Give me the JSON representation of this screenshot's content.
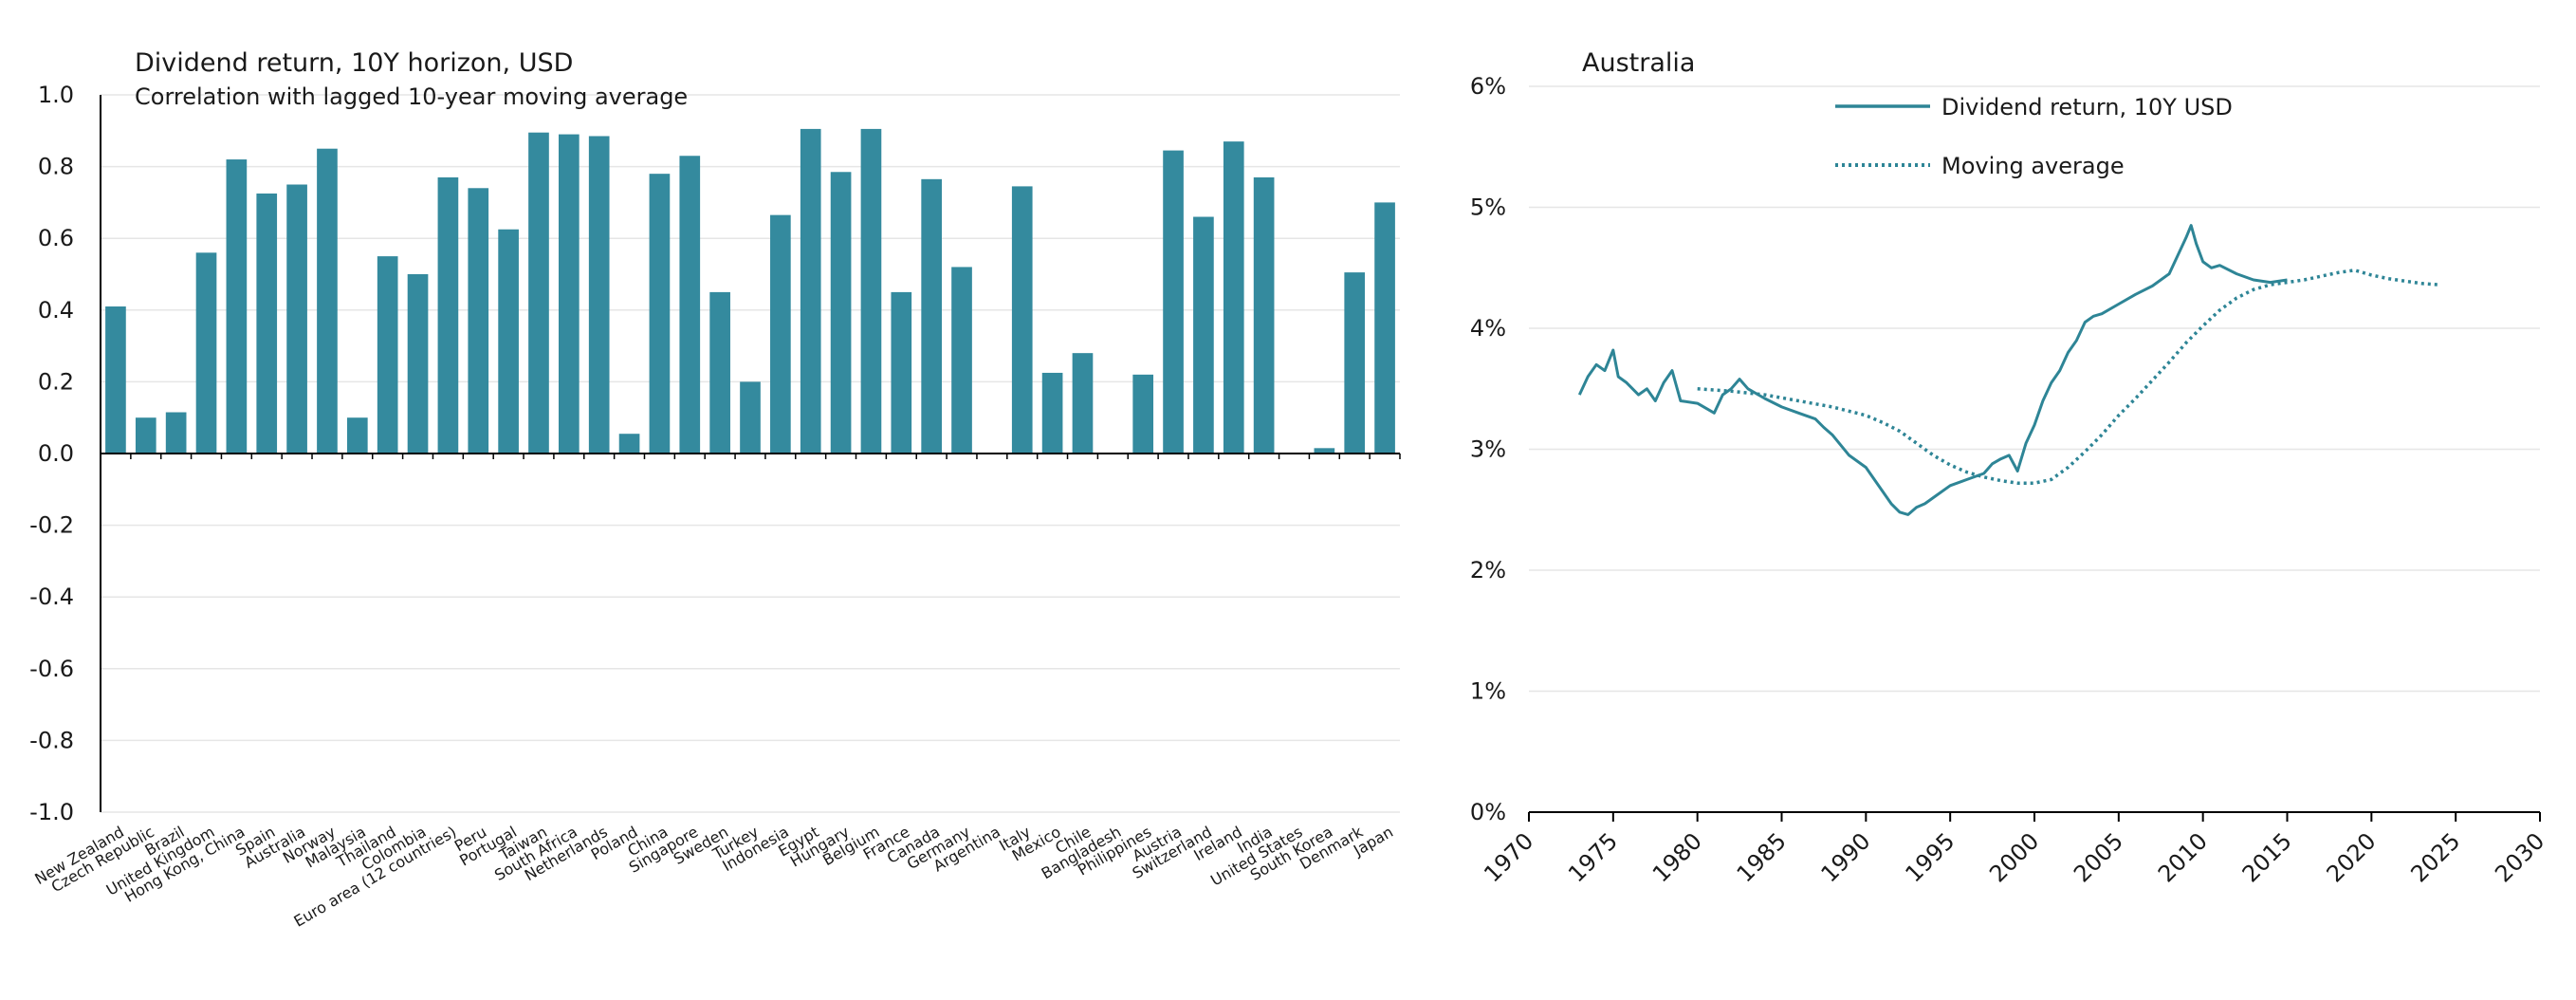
{
  "colors": {
    "bar": "#348a9e",
    "line": "#2e8596",
    "grid": "#e6e6e6",
    "axis": "#000000"
  },
  "chart_data": [
    {
      "type": "bar",
      "title": "Dividend return, 10Y horizon, USD",
      "subtitle": "Correlation with lagged 10-year moving average",
      "ylim": [
        -1.0,
        1.0
      ],
      "yticks": [
        "1.0",
        "0.8",
        "0.6",
        "0.4",
        "0.2",
        "0.0",
        "-0.2",
        "-0.4",
        "-0.6",
        "-0.8",
        "-1.0"
      ],
      "categories": [
        "New Zealand",
        "Czech Republic",
        "Brazil",
        "United Kingdom",
        "Hong Kong, China",
        "Spain",
        "Australia",
        "Norway",
        "Malaysia",
        "Thailand",
        "Colombia",
        "Euro area (12 countries)",
        "Peru",
        "Portugal",
        "Taiwan",
        "South Africa",
        "Netherlands",
        "Poland",
        "China",
        "Singapore",
        "Sweden",
        "Turkey",
        "Indonesia",
        "Egypt",
        "Hungary",
        "Belgium",
        "France",
        "Canada",
        "Germany",
        "Argentina",
        "Italy",
        "Mexico",
        "Chile",
        "Bangladesh",
        "Philippines",
        "Austria",
        "Switzerland",
        "Ireland",
        "India",
        "United States",
        "South Korea",
        "Denmark",
        "Japan"
      ],
      "values": [
        0.41,
        0.1,
        0.115,
        0.56,
        0.82,
        0.725,
        0.75,
        0.85,
        0.1,
        0.55,
        0.5,
        0.77,
        0.74,
        0.625,
        0.895,
        0.89,
        0.885,
        0.055,
        0.78,
        0.83,
        0.45,
        0.2,
        0.665,
        0.905,
        0.785,
        0.905,
        0.45,
        0.765,
        0.52,
        0.0,
        0.745,
        0.225,
        0.28,
        0.0,
        0.22,
        0.845,
        0.66,
        0.87,
        0.77,
        0.0,
        0.015,
        0.505,
        0.7
      ]
    },
    {
      "type": "line",
      "title": "Australia",
      "xlim": [
        1970,
        2030
      ],
      "ylim": [
        0,
        6
      ],
      "xticks": [
        "1970",
        "1975",
        "1980",
        "1985",
        "1990",
        "1995",
        "2000",
        "2005",
        "2010",
        "2015",
        "2020",
        "2025",
        "2030"
      ],
      "yticks": [
        "6%",
        "5%",
        "4%",
        "3%",
        "2%",
        "1%",
        "0%"
      ],
      "legend": [
        "Dividend return, 10Y USD",
        "Moving average"
      ],
      "series": [
        {
          "name": "Dividend return, 10Y USD",
          "x": [
            1973.0,
            1973.5,
            1974.0,
            1974.5,
            1975.0,
            1975.3,
            1975.8,
            1976.5,
            1977.0,
            1977.5,
            1978.0,
            1978.5,
            1979.0,
            1980.0,
            1981.0,
            1981.5,
            1982.0,
            1982.5,
            1983.0,
            1984.0,
            1985.0,
            1986.0,
            1987.0,
            1987.5,
            1988.0,
            1989.0,
            1990.0,
            1990.5,
            1991.0,
            1991.5,
            1992.0,
            1992.5,
            1993.0,
            1993.5,
            1994.0,
            1995.0,
            1996.0,
            1997.0,
            1997.5,
            1998.0,
            1998.5,
            1999.0,
            1999.5,
            2000.0,
            2000.5,
            2001.0,
            2001.5,
            2002.0,
            2002.5,
            2003.0,
            2003.5,
            2004.0,
            2005.0,
            2006.0,
            2007.0,
            2008.0,
            2008.5,
            2009.0,
            2009.3,
            2009.6,
            2010.0,
            2010.5,
            2011.0,
            2012.0,
            2013.0,
            2014.0,
            2015.0
          ],
          "y": [
            3.45,
            3.6,
            3.7,
            3.65,
            3.82,
            3.6,
            3.55,
            3.45,
            3.5,
            3.4,
            3.55,
            3.65,
            3.4,
            3.38,
            3.3,
            3.45,
            3.5,
            3.58,
            3.5,
            3.42,
            3.35,
            3.3,
            3.25,
            3.18,
            3.12,
            2.95,
            2.85,
            2.75,
            2.65,
            2.55,
            2.48,
            2.46,
            2.52,
            2.55,
            2.6,
            2.7,
            2.75,
            2.8,
            2.88,
            2.92,
            2.95,
            2.82,
            3.05,
            3.2,
            3.4,
            3.55,
            3.65,
            3.8,
            3.9,
            4.05,
            4.1,
            4.12,
            4.2,
            4.28,
            4.35,
            4.45,
            4.6,
            4.75,
            4.85,
            4.7,
            4.55,
            4.5,
            4.52,
            4.45,
            4.4,
            4.38,
            4.4
          ]
        },
        {
          "name": "Moving average",
          "x": [
            1980.0,
            1982.0,
            1984.0,
            1986.0,
            1988.0,
            1990.0,
            1991.0,
            1992.0,
            1993.0,
            1994.0,
            1995.0,
            1996.0,
            1997.0,
            1998.0,
            1999.0,
            2000.0,
            2001.0,
            2002.0,
            2003.0,
            2004.0,
            2005.0,
            2006.0,
            2007.0,
            2008.0,
            2009.0,
            2010.0,
            2011.0,
            2012.0,
            2013.0,
            2014.0,
            2015.0,
            2016.0,
            2017.0,
            2018.0,
            2019.0,
            2020.0,
            2021.0,
            2022.0,
            2023.0,
            2024.0
          ],
          "y": [
            3.5,
            3.48,
            3.45,
            3.4,
            3.35,
            3.28,
            3.22,
            3.15,
            3.05,
            2.95,
            2.87,
            2.81,
            2.77,
            2.74,
            2.72,
            2.72,
            2.75,
            2.85,
            2.98,
            3.12,
            3.28,
            3.42,
            3.57,
            3.72,
            3.88,
            4.02,
            4.15,
            4.25,
            4.32,
            4.36,
            4.38,
            4.4,
            4.43,
            4.46,
            4.48,
            4.44,
            4.41,
            4.39,
            4.37,
            4.36
          ]
        }
      ]
    }
  ]
}
